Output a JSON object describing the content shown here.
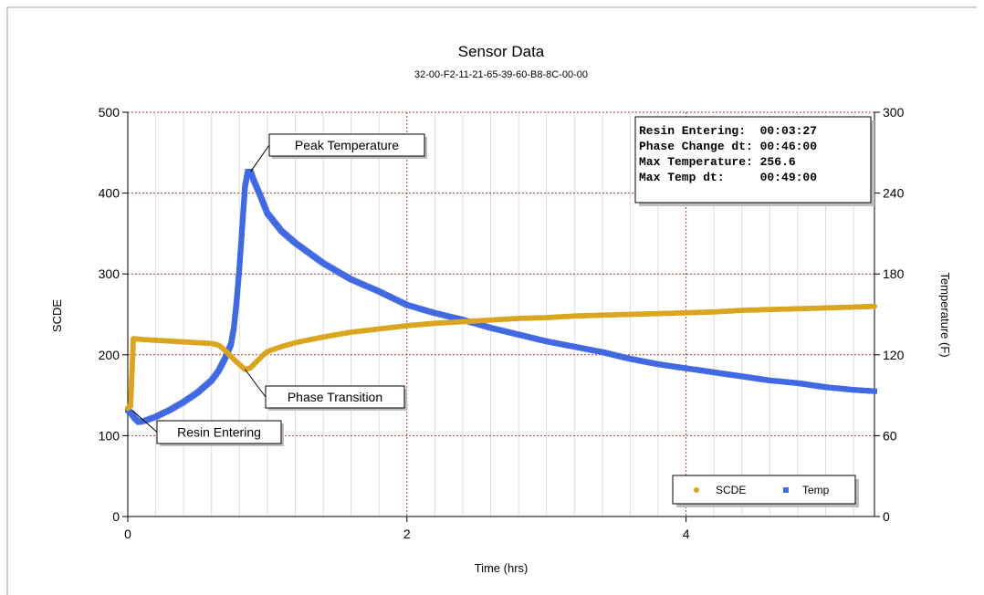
{
  "chart_data": {
    "type": "scatter",
    "title": "Sensor Data",
    "subtitle": "32-00-F2-11-21-65-39-60-B8-8C-00-00",
    "xlabel": "Time (hrs)",
    "ylabel_left": "SCDE",
    "ylabel_right": "Temperature (F)",
    "xlim": [
      0,
      5.35
    ],
    "ylim_left": [
      0,
      500
    ],
    "ylim_right": [
      0,
      300
    ],
    "x_ticks": [
      "0",
      "2",
      "4"
    ],
    "y_ticks_left": [
      "0",
      "100",
      "200",
      "300",
      "400",
      "500"
    ],
    "y_ticks_right": [
      "0",
      "60",
      "120",
      "180",
      "240",
      "300"
    ],
    "grid": true,
    "legend_position": "bottom-right",
    "colors": {
      "SCDE": "#daa520",
      "Temp": "#4169e1"
    },
    "series": [
      {
        "name": "SCDE",
        "axis": "left",
        "x": [
          0.0,
          0.02,
          0.04,
          0.1,
          0.2,
          0.3,
          0.4,
          0.5,
          0.6,
          0.65,
          0.7,
          0.75,
          0.8,
          0.84,
          0.88,
          0.92,
          0.96,
          1.0,
          1.1,
          1.2,
          1.4,
          1.6,
          1.8,
          2.0,
          2.2,
          2.4,
          2.6,
          2.8,
          3.0,
          3.2,
          3.4,
          3.6,
          3.8,
          4.0,
          4.2,
          4.4,
          4.6,
          4.8,
          5.0,
          5.2,
          5.35
        ],
        "y": [
          134,
          137,
          220,
          219,
          218,
          217,
          216,
          215,
          214,
          212,
          205,
          196,
          188,
          182,
          184,
          191,
          198,
          204,
          210,
          215,
          222,
          228,
          232,
          236,
          239,
          241,
          243,
          245,
          246,
          248,
          249,
          250,
          251,
          252,
          253,
          255,
          256,
          257,
          258,
          259,
          260
        ]
      },
      {
        "name": "Temp",
        "axis": "right",
        "x": [
          0.0,
          0.03,
          0.05,
          0.08,
          0.12,
          0.2,
          0.3,
          0.4,
          0.5,
          0.6,
          0.65,
          0.7,
          0.74,
          0.76,
          0.78,
          0.8,
          0.82,
          0.84,
          0.86,
          0.88,
          0.9,
          0.95,
          1.0,
          1.1,
          1.2,
          1.4,
          1.6,
          1.8,
          2.0,
          2.2,
          2.4,
          2.6,
          2.8,
          3.0,
          3.2,
          3.4,
          3.6,
          3.8,
          4.0,
          4.2,
          4.4,
          4.6,
          4.8,
          5.0,
          5.2,
          5.35
        ],
        "y": [
          79,
          76,
          73,
          70,
          71,
          74,
          79,
          85,
          92,
          101,
          108,
          118,
          128,
          140,
          160,
          185,
          215,
          245,
          256,
          256,
          250,
          238,
          225,
          212,
          203,
          188,
          176,
          167,
          157,
          151,
          146,
          140,
          135,
          130,
          126,
          122,
          117,
          113,
          110,
          107,
          104,
          101,
          99,
          96,
          94,
          93
        ]
      }
    ],
    "annotations": [
      {
        "label": "Peak Temperature"
      },
      {
        "label": "Phase Transition"
      },
      {
        "label": "Resin Entering"
      }
    ],
    "info_box": [
      "Resin Entering:  00:03:27",
      "Phase Change dt: 00:46:00",
      "Max Temperature: 256.6",
      "Max Temp dt:     00:49:00"
    ]
  }
}
